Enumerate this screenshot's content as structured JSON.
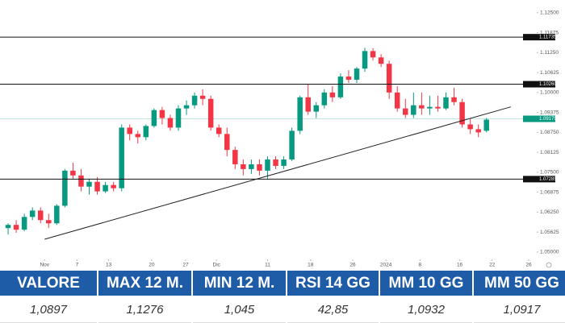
{
  "chart_data": {
    "type": "candlestick",
    "open": [
      1.0575,
      1.0585,
      1.057,
      1.061,
      1.063,
      1.06,
      1.059,
      1.0645,
      1.0755,
      1.074,
      1.0705,
      1.072,
      1.069,
      1.071,
      1.07,
      1.089,
      1.087,
      1.086,
      1.0895,
      1.0945,
      1.092,
      1.089,
      1.095,
      1.096,
      1.099,
      1.098,
      1.089,
      1.087,
      1.082,
      1.0775,
      1.076,
      1.0775,
      1.0755,
      1.079,
      1.077,
      1.079,
      1.088,
      1.0985,
      1.094,
      1.096,
      1.1,
      1.0985,
      1.105,
      1.104,
      1.1075,
      1.113,
      1.111,
      1.109,
      1.1,
      1.095,
      1.093,
      1.096,
      1.095,
      1.0955,
      1.095,
      1.0985,
      1.097,
      1.09,
      1.0885,
      1.088
    ],
    "high": [
      1.059,
      1.06,
      1.062,
      1.064,
      1.064,
      1.062,
      1.065,
      1.076,
      1.078,
      1.076,
      1.073,
      1.0735,
      1.072,
      1.072,
      1.09,
      1.09,
      1.088,
      1.09,
      1.095,
      1.0955,
      1.093,
      1.096,
      1.0975,
      1.1,
      1.101,
      1.099,
      1.09,
      1.089,
      1.083,
      1.079,
      1.079,
      1.079,
      1.08,
      1.08,
      1.08,
      1.089,
      1.099,
      1.1025,
      1.097,
      1.101,
      1.102,
      1.106,
      1.107,
      1.108,
      1.114,
      1.1139,
      1.112,
      1.11,
      1.102,
      1.098,
      1.1,
      1.1,
      1.099,
      1.099,
      1.1,
      1.1015,
      1.098,
      1.092,
      1.09,
      1.092
    ],
    "low": [
      1.0555,
      1.056,
      1.0565,
      1.06,
      1.059,
      1.0575,
      1.0585,
      1.064,
      1.073,
      1.069,
      1.068,
      1.068,
      1.0685,
      1.069,
      1.069,
      1.085,
      1.084,
      1.085,
      1.089,
      1.09,
      1.088,
      1.088,
      1.093,
      1.095,
      1.096,
      1.088,
      1.086,
      1.08,
      1.076,
      1.074,
      1.0745,
      1.074,
      1.073,
      1.076,
      1.076,
      1.0785,
      1.087,
      1.093,
      1.092,
      1.095,
      1.097,
      1.098,
      1.103,
      1.103,
      1.1065,
      1.11,
      1.108,
      1.098,
      1.094,
      1.092,
      1.092,
      1.093,
      1.093,
      1.094,
      1.0945,
      1.096,
      1.089,
      1.087,
      1.086,
      1.0875
    ],
    "close": [
      1.0585,
      1.057,
      1.061,
      1.063,
      1.06,
      1.059,
      1.0645,
      1.0755,
      1.074,
      1.0705,
      1.072,
      1.069,
      1.071,
      1.07,
      1.089,
      1.087,
      1.086,
      1.0895,
      1.0945,
      1.092,
      1.089,
      1.095,
      1.096,
      1.099,
      1.098,
      1.089,
      1.087,
      1.082,
      1.0775,
      1.076,
      1.0775,
      1.0755,
      1.079,
      1.077,
      1.079,
      1.088,
      1.0985,
      1.094,
      1.096,
      1.1,
      1.0985,
      1.105,
      1.104,
      1.1075,
      1.113,
      1.111,
      1.109,
      1.1,
      1.095,
      1.093,
      1.096,
      1.095,
      1.0955,
      1.095,
      1.0985,
      1.097,
      1.09,
      1.0885,
      1.0875,
      1.0915
    ],
    "up_color": "#089981",
    "down_color": "#f23645",
    "xlim": [
      -1,
      65.2
    ],
    "xticks": [
      {
        "value": 4.5,
        "label": "Nov"
      },
      {
        "value": 8.5,
        "label": "7"
      },
      {
        "value": 12.4,
        "label": "13"
      },
      {
        "value": 17.7,
        "label": "20"
      },
      {
        "value": 21.9,
        "label": "27"
      },
      {
        "value": 25.7,
        "label": "Dic"
      },
      {
        "value": 32,
        "label": "11"
      },
      {
        "value": 37.3,
        "label": "18"
      },
      {
        "value": 42.5,
        "label": "26"
      },
      {
        "value": 46.6,
        "label": "2024"
      },
      {
        "value": 50.8,
        "label": "8"
      },
      {
        "value": 55.7,
        "label": "16"
      },
      {
        "value": 59.7,
        "label": "22"
      },
      {
        "value": 64.2,
        "label": "26"
      }
    ],
    "ylim": [
      1.0482,
      1.129
    ],
    "yticks": [
      {
        "value": 1.05,
        "label": "1.05000"
      },
      {
        "value": 1.05625,
        "label": "1.05625"
      },
      {
        "value": 1.0625,
        "label": "1.06250"
      },
      {
        "value": 1.06875,
        "label": "1.06875"
      },
      {
        "value": 1.075,
        "label": "1.07500"
      },
      {
        "value": 1.08125,
        "label": "1.08125"
      },
      {
        "value": 1.0875,
        "label": "1.08750"
      },
      {
        "value": 1.09375,
        "label": "1.09375"
      },
      {
        "value": 1.1,
        "label": "1.10000"
      },
      {
        "value": 1.10625,
        "label": "1.10625"
      },
      {
        "value": 1.1125,
        "label": "1.11250"
      },
      {
        "value": 1.11875,
        "label": "1.11875"
      },
      {
        "value": 1.125,
        "label": "1.12500"
      }
    ],
    "levels": [
      {
        "value": 1.11735,
        "label": "1.11735"
      },
      {
        "value": 1.1026,
        "label": "1.10260"
      },
      {
        "value": 1.07285,
        "label": "1.07285"
      }
    ],
    "last_price": {
      "value": 1.09175,
      "label": "1.09175",
      "color": "#089981"
    },
    "trendline": {
      "x": [
        4.5,
        62
      ],
      "y": [
        1.054,
        1.0955
      ]
    }
  },
  "table": {
    "header": [
      "VALORE",
      "MAX 12 M.",
      "MIN 12 M.",
      "RSI 14 GG",
      "MM 10 GG",
      "MM 50 GG"
    ],
    "rows": [
      [
        "1,0897",
        "1,1276",
        "1,045",
        "42,85",
        "1,0932",
        "1,0917"
      ]
    ]
  }
}
